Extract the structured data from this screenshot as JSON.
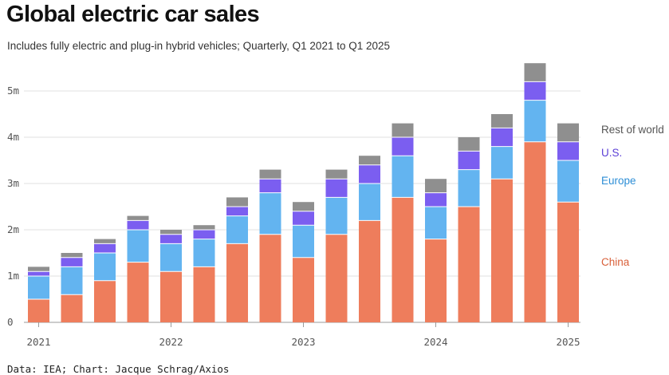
{
  "title": "Global electric car sales",
  "subtitle": "Includes fully electric and plug-in hybrid vehicles; Quarterly, Q1 2021 to Q1 2025",
  "source": "Data: IEA; Chart: Jacque Schrag/Axios",
  "colors": {
    "China": "#ee7d5c",
    "Europe": "#63b4f0",
    "U.S.": "#7b5ef0",
    "Rest of world": "#8f8f8f"
  },
  "chart_data": {
    "type": "bar",
    "stacked": true,
    "title": "Global electric car sales",
    "subtitle": "Includes fully electric and plug-in hybrid vehicles; Quarterly, Q1 2021 to Q1 2025",
    "xlabel": "",
    "ylabel": "",
    "ylim": [
      0,
      5.6
    ],
    "yticks": [
      0,
      1,
      2,
      3,
      4,
      5
    ],
    "ytick_labels": [
      "0",
      "1m",
      "2m",
      "3m",
      "4m",
      "5m"
    ],
    "categories": [
      "Q1 2021",
      "Q2 2021",
      "Q3 2021",
      "Q4 2021",
      "Q1 2022",
      "Q2 2022",
      "Q3 2022",
      "Q4 2022",
      "Q1 2023",
      "Q2 2023",
      "Q3 2023",
      "Q4 2023",
      "Q1 2024",
      "Q2 2024",
      "Q3 2024",
      "Q4 2024",
      "Q1 2025"
    ],
    "xtick_labels": [
      {
        "label": "2021",
        "index": 0
      },
      {
        "label": "2022",
        "index": 4
      },
      {
        "label": "2023",
        "index": 8
      },
      {
        "label": "2024",
        "index": 12
      },
      {
        "label": "2025",
        "index": 16
      }
    ],
    "series": [
      {
        "name": "China",
        "values": [
          0.5,
          0.6,
          0.9,
          1.3,
          1.1,
          1.2,
          1.7,
          1.9,
          1.4,
          1.9,
          2.2,
          2.7,
          1.8,
          2.5,
          3.1,
          3.9,
          2.6
        ]
      },
      {
        "name": "Europe",
        "values": [
          0.5,
          0.6,
          0.6,
          0.7,
          0.6,
          0.6,
          0.6,
          0.9,
          0.7,
          0.8,
          0.8,
          0.9,
          0.7,
          0.8,
          0.7,
          0.9,
          0.9
        ]
      },
      {
        "name": "U.S.",
        "values": [
          0.1,
          0.2,
          0.2,
          0.2,
          0.2,
          0.2,
          0.2,
          0.3,
          0.3,
          0.4,
          0.4,
          0.4,
          0.3,
          0.4,
          0.4,
          0.4,
          0.4
        ]
      },
      {
        "name": "Rest of world",
        "values": [
          0.1,
          0.1,
          0.1,
          0.1,
          0.1,
          0.1,
          0.2,
          0.2,
          0.2,
          0.2,
          0.2,
          0.3,
          0.3,
          0.3,
          0.3,
          0.4,
          0.4
        ]
      }
    ],
    "legend": [
      "Rest of world",
      "U.S.",
      "Europe",
      "China"
    ],
    "legend_placement": "right, beside last bar",
    "grid": true,
    "source": "Data: IEA; Chart: Jacque Schrag/Axios"
  }
}
